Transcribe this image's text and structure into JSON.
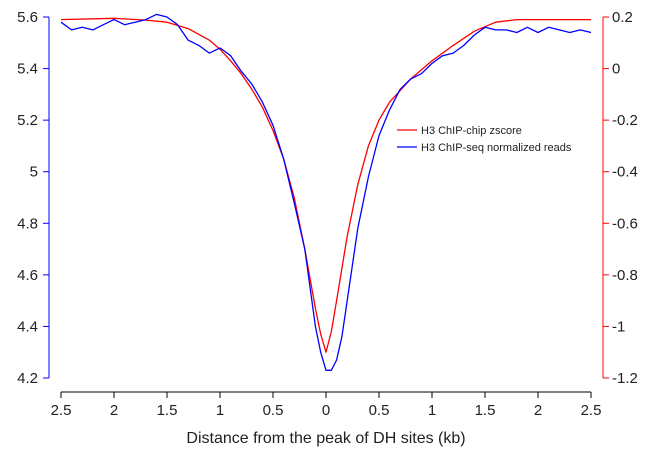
{
  "chart_data": {
    "type": "line",
    "xlabel": "Distance from the peak of DH sites (kb)",
    "x_ticks": [
      -2.5,
      -2,
      -1.5,
      -1,
      -0.5,
      0,
      0.5,
      1,
      1.5,
      2,
      2.5
    ],
    "x_tick_labels": [
      "2.5",
      "2",
      "1.5",
      "1",
      "0.5",
      "0",
      "0.5",
      "1",
      "1.5",
      "2",
      "2.5"
    ],
    "xlim": [
      -2.5,
      2.5
    ],
    "y_left": {
      "ylim": [
        4.2,
        5.6
      ],
      "ticks": [
        4.2,
        4.4,
        4.6,
        4.8,
        5,
        5.2,
        5.4,
        5.6
      ],
      "tick_labels": [
        "4.2",
        "4.4",
        "4.6",
        "4.8",
        "5",
        "5.2",
        "5.4",
        "5.6"
      ],
      "color": "#0000ff"
    },
    "y_right": {
      "ylim": [
        -1.2,
        0.2
      ],
      "ticks": [
        -1.2,
        -1,
        -0.8,
        -0.6,
        -0.4,
        -0.2,
        0,
        0.2
      ],
      "tick_labels": [
        "-1.2",
        "-1",
        "-0.8",
        "-0.6",
        "-0.4",
        "-0.2",
        "0",
        "0.2"
      ],
      "color": "#ff0000"
    },
    "legend_position": "right-center",
    "grid": false,
    "series": [
      {
        "name": "H3 ChIP-chip zscore",
        "axis": "right",
        "color": "#ff0000",
        "x": [
          -2.5,
          -2.0,
          -1.7,
          -1.5,
          -1.3,
          -1.1,
          -1.0,
          -0.9,
          -0.8,
          -0.7,
          -0.6,
          -0.5,
          -0.4,
          -0.3,
          -0.2,
          -0.1,
          -0.05,
          0.0,
          0.05,
          0.1,
          0.2,
          0.3,
          0.4,
          0.5,
          0.6,
          0.8,
          1.0,
          1.2,
          1.4,
          1.6,
          1.8,
          2.0,
          2.5
        ],
        "y": [
          0.19,
          0.195,
          0.188,
          0.18,
          0.155,
          0.11,
          0.075,
          0.03,
          -0.02,
          -0.08,
          -0.15,
          -0.24,
          -0.35,
          -0.5,
          -0.7,
          -0.93,
          -1.03,
          -1.1,
          -1.02,
          -0.9,
          -0.65,
          -0.45,
          -0.3,
          -0.2,
          -0.13,
          -0.04,
          0.03,
          0.09,
          0.145,
          0.18,
          0.19,
          0.19,
          0.19
        ]
      },
      {
        "name": "H3 ChIP-seq normalized reads",
        "axis": "left",
        "color": "#0000ff",
        "x": [
          -2.5,
          -2.4,
          -2.3,
          -2.2,
          -2.1,
          -2.0,
          -1.9,
          -1.8,
          -1.7,
          -1.6,
          -1.5,
          -1.4,
          -1.3,
          -1.2,
          -1.1,
          -1.0,
          -0.9,
          -0.8,
          -0.7,
          -0.6,
          -0.5,
          -0.4,
          -0.3,
          -0.2,
          -0.15,
          -0.1,
          -0.05,
          0.0,
          0.05,
          0.1,
          0.15,
          0.2,
          0.3,
          0.4,
          0.5,
          0.6,
          0.7,
          0.8,
          0.9,
          1.0,
          1.1,
          1.2,
          1.3,
          1.4,
          1.5,
          1.6,
          1.7,
          1.8,
          1.9,
          2.0,
          2.1,
          2.2,
          2.3,
          2.4,
          2.5
        ],
        "y": [
          5.58,
          5.55,
          5.56,
          5.55,
          5.57,
          5.59,
          5.57,
          5.58,
          5.59,
          5.61,
          5.6,
          5.57,
          5.51,
          5.49,
          5.46,
          5.48,
          5.45,
          5.39,
          5.34,
          5.27,
          5.18,
          5.05,
          4.88,
          4.7,
          4.55,
          4.4,
          4.3,
          4.23,
          4.23,
          4.27,
          4.36,
          4.5,
          4.78,
          4.98,
          5.14,
          5.24,
          5.32,
          5.36,
          5.38,
          5.42,
          5.45,
          5.46,
          5.49,
          5.53,
          5.56,
          5.55,
          5.55,
          5.54,
          5.56,
          5.54,
          5.56,
          5.55,
          5.54,
          5.55,
          5.54
        ]
      }
    ]
  }
}
